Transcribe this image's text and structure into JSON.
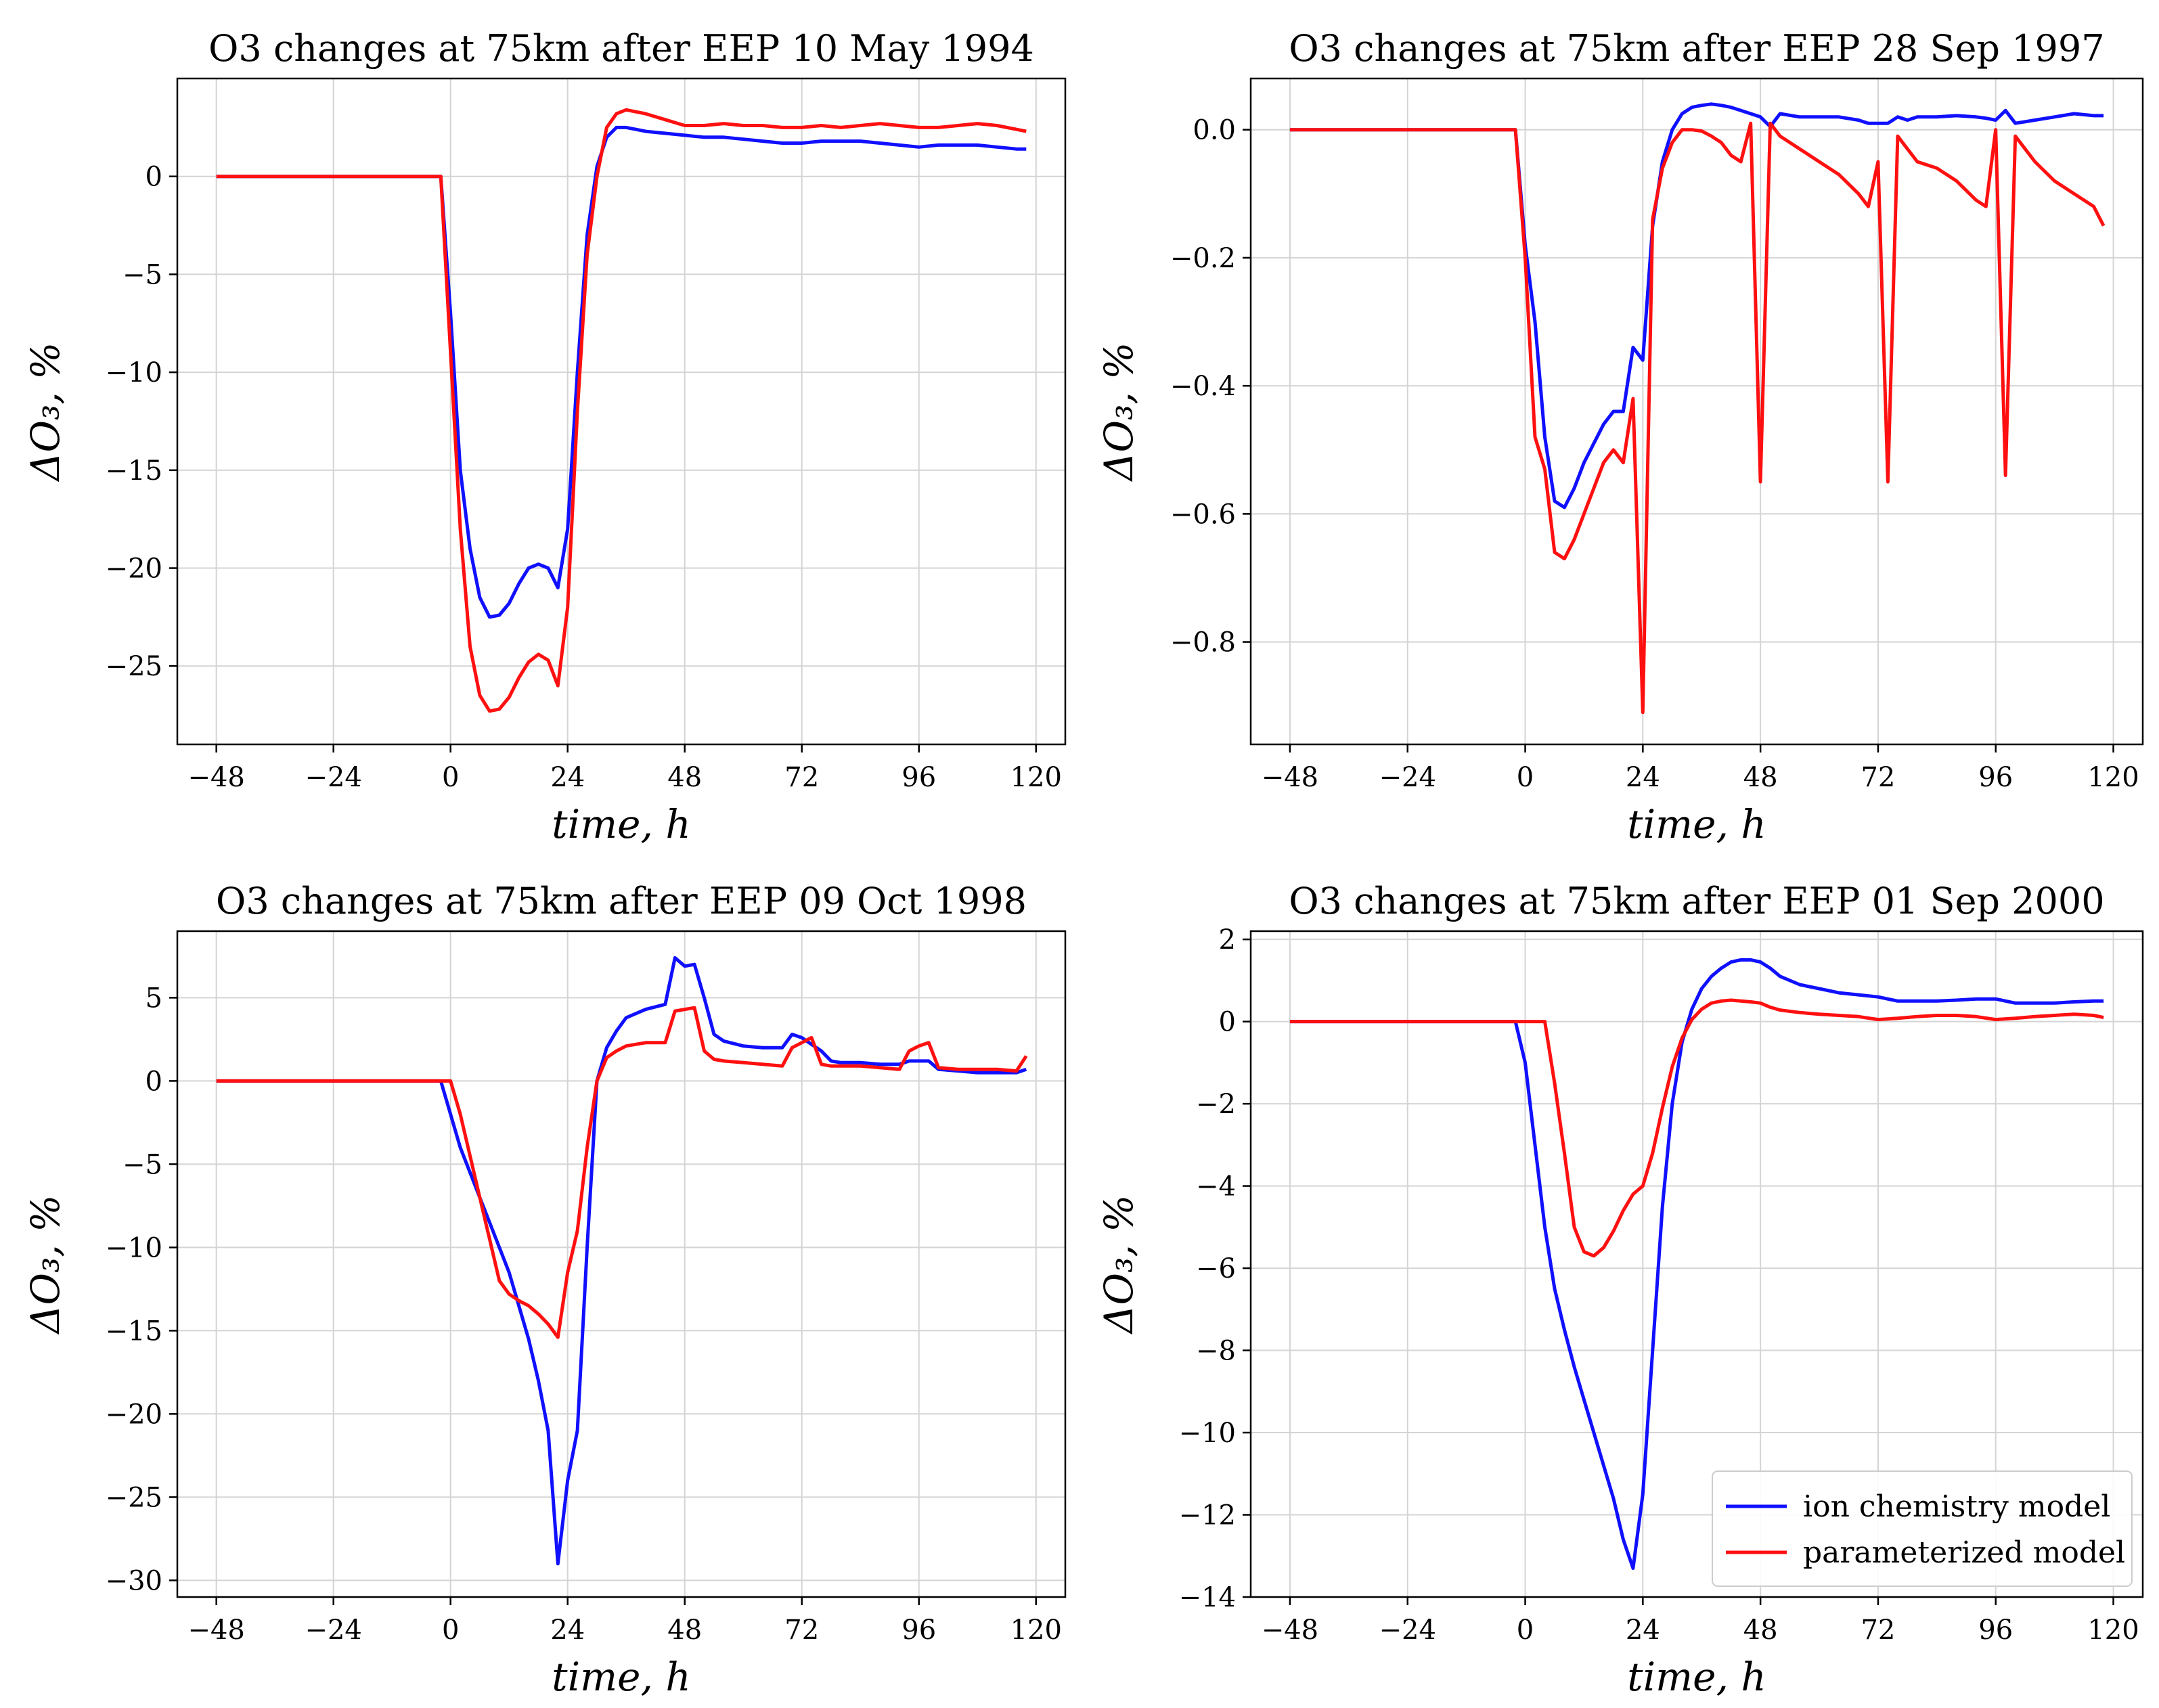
{
  "figure": {
    "colors": {
      "ion": "#1010ff",
      "param": "#ff1010",
      "grid": "#d4d4d4",
      "axis": "#000000"
    }
  },
  "legend": {
    "entries": [
      "ion chemistry model",
      "parameterized model"
    ]
  },
  "chart_data": [
    {
      "type": "line",
      "title": "O3 changes at 75km after EEP 10 May 1994",
      "xlabel": "time, h",
      "ylabel": "ΔO₃, %",
      "xlim": [
        -56,
        126
      ],
      "ylim": [
        -29,
        5
      ],
      "xticks": [
        -48,
        -24,
        0,
        24,
        48,
        72,
        96,
        120
      ],
      "yticks": [
        0,
        -5,
        -10,
        -15,
        -20,
        -25
      ],
      "ytick_labels": [
        "0",
        "−5",
        "−10",
        "−15",
        "−20",
        "−25"
      ],
      "grid": true,
      "series": [
        {
          "name": "ion chemistry model",
          "x": [
            -48,
            -2,
            0,
            2,
            4,
            6,
            8,
            10,
            12,
            14,
            16,
            18,
            20,
            22,
            24,
            26,
            28,
            30,
            32,
            34,
            36,
            38,
            40,
            44,
            48,
            52,
            56,
            60,
            64,
            68,
            72,
            76,
            80,
            84,
            88,
            92,
            96,
            100,
            104,
            108,
            112,
            116,
            118
          ],
          "y": [
            0,
            0,
            -7,
            -15,
            -19,
            -21.5,
            -22.5,
            -22.4,
            -21.8,
            -20.8,
            -20,
            -19.8,
            -20,
            -21,
            -18,
            -10,
            -3,
            0.5,
            2,
            2.5,
            2.5,
            2.4,
            2.3,
            2.2,
            2.1,
            2,
            2,
            1.9,
            1.8,
            1.7,
            1.7,
            1.8,
            1.8,
            1.8,
            1.7,
            1.6,
            1.5,
            1.6,
            1.6,
            1.6,
            1.5,
            1.4,
            1.4
          ]
        },
        {
          "name": "parameterized model",
          "x": [
            -48,
            -2,
            0,
            2,
            4,
            6,
            8,
            10,
            12,
            14,
            16,
            18,
            20,
            22,
            24,
            26,
            28,
            30,
            32,
            34,
            36,
            38,
            40,
            44,
            48,
            52,
            56,
            60,
            64,
            68,
            72,
            76,
            80,
            84,
            88,
            92,
            96,
            100,
            104,
            108,
            112,
            116,
            118
          ],
          "y": [
            0,
            0,
            -9,
            -18,
            -24,
            -26.5,
            -27.3,
            -27.2,
            -26.6,
            -25.6,
            -24.8,
            -24.4,
            -24.7,
            -26,
            -22,
            -12,
            -4,
            0,
            2.5,
            3.2,
            3.4,
            3.3,
            3.2,
            2.9,
            2.6,
            2.6,
            2.7,
            2.6,
            2.6,
            2.5,
            2.5,
            2.6,
            2.5,
            2.6,
            2.7,
            2.6,
            2.5,
            2.5,
            2.6,
            2.7,
            2.6,
            2.4,
            2.3
          ]
        }
      ]
    },
    {
      "type": "line",
      "title": "O3 changes at 75km after EEP 28 Sep 1997",
      "xlabel": "time, h",
      "ylabel": "ΔO₃, %",
      "xlim": [
        -56,
        126
      ],
      "ylim": [
        -0.96,
        0.08
      ],
      "xticks": [
        -48,
        -24,
        0,
        24,
        48,
        72,
        96,
        120
      ],
      "yticks": [
        0,
        -0.2,
        -0.4,
        -0.6,
        -0.8
      ],
      "ytick_labels": [
        "0.0",
        "−0.2",
        "−0.4",
        "−0.6",
        "−0.8"
      ],
      "grid": true,
      "series": [
        {
          "name": "ion chemistry model",
          "x": [
            -48,
            -2,
            0,
            2,
            4,
            6,
            8,
            10,
            12,
            14,
            16,
            18,
            20,
            22,
            24,
            26,
            28,
            30,
            32,
            34,
            36,
            38,
            40,
            42,
            44,
            46,
            48,
            50,
            52,
            56,
            60,
            64,
            68,
            70,
            72,
            74,
            76,
            78,
            80,
            84,
            88,
            92,
            94,
            96,
            98,
            100,
            104,
            108,
            112,
            116,
            118
          ],
          "y": [
            0,
            0,
            -0.18,
            -0.3,
            -0.48,
            -0.58,
            -0.59,
            -0.56,
            -0.52,
            -0.49,
            -0.46,
            -0.44,
            -0.44,
            -0.34,
            -0.36,
            -0.15,
            -0.05,
            0.0,
            0.025,
            0.035,
            0.038,
            0.04,
            0.038,
            0.035,
            0.03,
            0.025,
            0.02,
            0.005,
            0.025,
            0.02,
            0.02,
            0.02,
            0.015,
            0.01,
            0.01,
            0.01,
            0.02,
            0.015,
            0.02,
            0.02,
            0.022,
            0.02,
            0.018,
            0.015,
            0.03,
            0.01,
            0.015,
            0.02,
            0.025,
            0.022,
            0.022
          ]
        },
        {
          "name": "parameterized model",
          "x": [
            -48,
            -2,
            0,
            2,
            4,
            6,
            8,
            10,
            12,
            14,
            16,
            18,
            20,
            22,
            24,
            26,
            28,
            30,
            32,
            34,
            36,
            38,
            40,
            42,
            44,
            46,
            48,
            50,
            52,
            56,
            60,
            64,
            68,
            70,
            72,
            74,
            76,
            78,
            80,
            84,
            88,
            92,
            94,
            96,
            98,
            100,
            104,
            108,
            112,
            116,
            118
          ],
          "y": [
            0,
            0,
            -0.2,
            -0.48,
            -0.53,
            -0.66,
            -0.67,
            -0.64,
            -0.6,
            -0.56,
            -0.52,
            -0.5,
            -0.52,
            -0.42,
            -0.91,
            -0.14,
            -0.06,
            -0.02,
            0.0,
            0.0,
            -0.002,
            -0.01,
            -0.02,
            -0.04,
            -0.05,
            0.01,
            -0.55,
            0.01,
            -0.01,
            -0.03,
            -0.05,
            -0.07,
            -0.1,
            -0.12,
            -0.05,
            -0.55,
            -0.01,
            -0.03,
            -0.05,
            -0.06,
            -0.08,
            -0.11,
            -0.12,
            0.0,
            -0.54,
            -0.01,
            -0.05,
            -0.08,
            -0.1,
            -0.12,
            -0.15
          ]
        }
      ]
    },
    {
      "type": "line",
      "title": "O3 changes at 75km after EEP 09 Oct 1998",
      "xlabel": "time, h",
      "ylabel": "ΔO₃, %",
      "xlim": [
        -56,
        126
      ],
      "ylim": [
        -31,
        9
      ],
      "xticks": [
        -48,
        -24,
        0,
        24,
        48,
        72,
        96,
        120
      ],
      "yticks": [
        5,
        0,
        -5,
        -10,
        -15,
        -20,
        -25,
        -30
      ],
      "ytick_labels": [
        "5",
        "0",
        "−5",
        "−10",
        "−15",
        "−20",
        "−25",
        "−30"
      ],
      "grid": true,
      "series": [
        {
          "name": "ion chemistry model",
          "x": [
            -48,
            -2,
            0,
            2,
            4,
            6,
            8,
            10,
            12,
            14,
            16,
            18,
            20,
            22,
            24,
            26,
            28,
            30,
            32,
            34,
            36,
            40,
            44,
            46,
            48,
            50,
            52,
            54,
            56,
            60,
            64,
            68,
            70,
            72,
            74,
            76,
            78,
            80,
            84,
            88,
            92,
            94,
            96,
            98,
            100,
            104,
            108,
            112,
            116,
            118
          ],
          "y": [
            0,
            0,
            -2,
            -4,
            -5.5,
            -7,
            -8.5,
            -10,
            -11.5,
            -13.5,
            -15.5,
            -18,
            -21,
            -29,
            -24,
            -21,
            -10,
            0,
            2,
            3,
            3.8,
            4.3,
            4.6,
            7.4,
            6.9,
            7,
            5,
            2.8,
            2.4,
            2.1,
            2,
            2,
            2.8,
            2.6,
            2.2,
            1.8,
            1.2,
            1.1,
            1.1,
            1,
            1,
            1.2,
            1.2,
            1.2,
            0.7,
            0.6,
            0.5,
            0.5,
            0.5,
            0.7
          ]
        },
        {
          "name": "parameterized model",
          "x": [
            -48,
            -2,
            0,
            2,
            4,
            6,
            8,
            10,
            12,
            14,
            16,
            18,
            20,
            22,
            24,
            26,
            28,
            30,
            32,
            34,
            36,
            40,
            44,
            46,
            48,
            50,
            52,
            54,
            56,
            60,
            64,
            68,
            70,
            72,
            74,
            76,
            78,
            80,
            84,
            88,
            92,
            94,
            96,
            98,
            100,
            104,
            108,
            112,
            116,
            118
          ],
          "y": [
            0,
            0,
            0,
            -2,
            -4.5,
            -7,
            -9.5,
            -12,
            -12.8,
            -13.2,
            -13.5,
            -14,
            -14.6,
            -15.4,
            -11.5,
            -9,
            -4,
            0,
            1.4,
            1.8,
            2.1,
            2.3,
            2.3,
            4.2,
            4.3,
            4.4,
            1.8,
            1.3,
            1.2,
            1.1,
            1,
            0.9,
            2,
            2.3,
            2.6,
            1,
            0.9,
            0.9,
            0.9,
            0.8,
            0.7,
            1.8,
            2.1,
            2.3,
            0.8,
            0.7,
            0.7,
            0.7,
            0.6,
            1.5
          ]
        }
      ]
    },
    {
      "type": "line",
      "title": "O3 changes at 75km after EEP 01 Sep 2000",
      "xlabel": "time, h",
      "ylabel": "ΔO₃, %",
      "xlim": [
        -56,
        126
      ],
      "ylim": [
        -14,
        2.2
      ],
      "xticks": [
        -48,
        -24,
        0,
        24,
        48,
        72,
        96,
        120
      ],
      "yticks": [
        2,
        0,
        -2,
        -4,
        -6,
        -8,
        -10,
        -12,
        -14
      ],
      "ytick_labels": [
        "2",
        "0",
        "−2",
        "−4",
        "−6",
        "−8",
        "−10",
        "−12",
        "−14"
      ],
      "grid": true,
      "legend_position": "lower-right",
      "series": [
        {
          "name": "ion chemistry model",
          "x": [
            -48,
            -2,
            0,
            2,
            4,
            6,
            8,
            10,
            12,
            14,
            16,
            18,
            20,
            22,
            24,
            26,
            28,
            30,
            32,
            34,
            36,
            38,
            40,
            42,
            44,
            46,
            48,
            50,
            52,
            56,
            60,
            64,
            68,
            72,
            76,
            80,
            84,
            88,
            92,
            96,
            100,
            104,
            108,
            112,
            116,
            118
          ],
          "y": [
            0,
            0,
            -1,
            -3,
            -5,
            -6.5,
            -7.5,
            -8.4,
            -9.2,
            -10,
            -10.8,
            -11.6,
            -12.6,
            -13.3,
            -11.5,
            -8,
            -4.5,
            -2,
            -0.5,
            0.3,
            0.8,
            1.1,
            1.3,
            1.45,
            1.5,
            1.5,
            1.45,
            1.3,
            1.1,
            0.9,
            0.8,
            0.7,
            0.65,
            0.6,
            0.5,
            0.5,
            0.5,
            0.52,
            0.55,
            0.55,
            0.45,
            0.45,
            0.45,
            0.48,
            0.5,
            0.5
          ]
        },
        {
          "name": "parameterized model",
          "x": [
            -48,
            4,
            6,
            8,
            10,
            12,
            14,
            16,
            18,
            20,
            22,
            24,
            26,
            28,
            30,
            32,
            34,
            36,
            38,
            40,
            42,
            44,
            46,
            48,
            50,
            52,
            56,
            60,
            64,
            68,
            72,
            76,
            80,
            84,
            88,
            92,
            96,
            100,
            104,
            108,
            112,
            116,
            118
          ],
          "y": [
            0,
            0,
            -1.5,
            -3.2,
            -5,
            -5.6,
            -5.7,
            -5.5,
            -5.1,
            -4.6,
            -4.2,
            -4.0,
            -3.2,
            -2.1,
            -1.1,
            -0.4,
            0.05,
            0.3,
            0.45,
            0.5,
            0.52,
            0.5,
            0.48,
            0.45,
            0.35,
            0.28,
            0.22,
            0.18,
            0.15,
            0.12,
            0.05,
            0.08,
            0.12,
            0.15,
            0.15,
            0.12,
            0.05,
            0.08,
            0.12,
            0.15,
            0.18,
            0.15,
            0.1
          ]
        }
      ]
    }
  ]
}
